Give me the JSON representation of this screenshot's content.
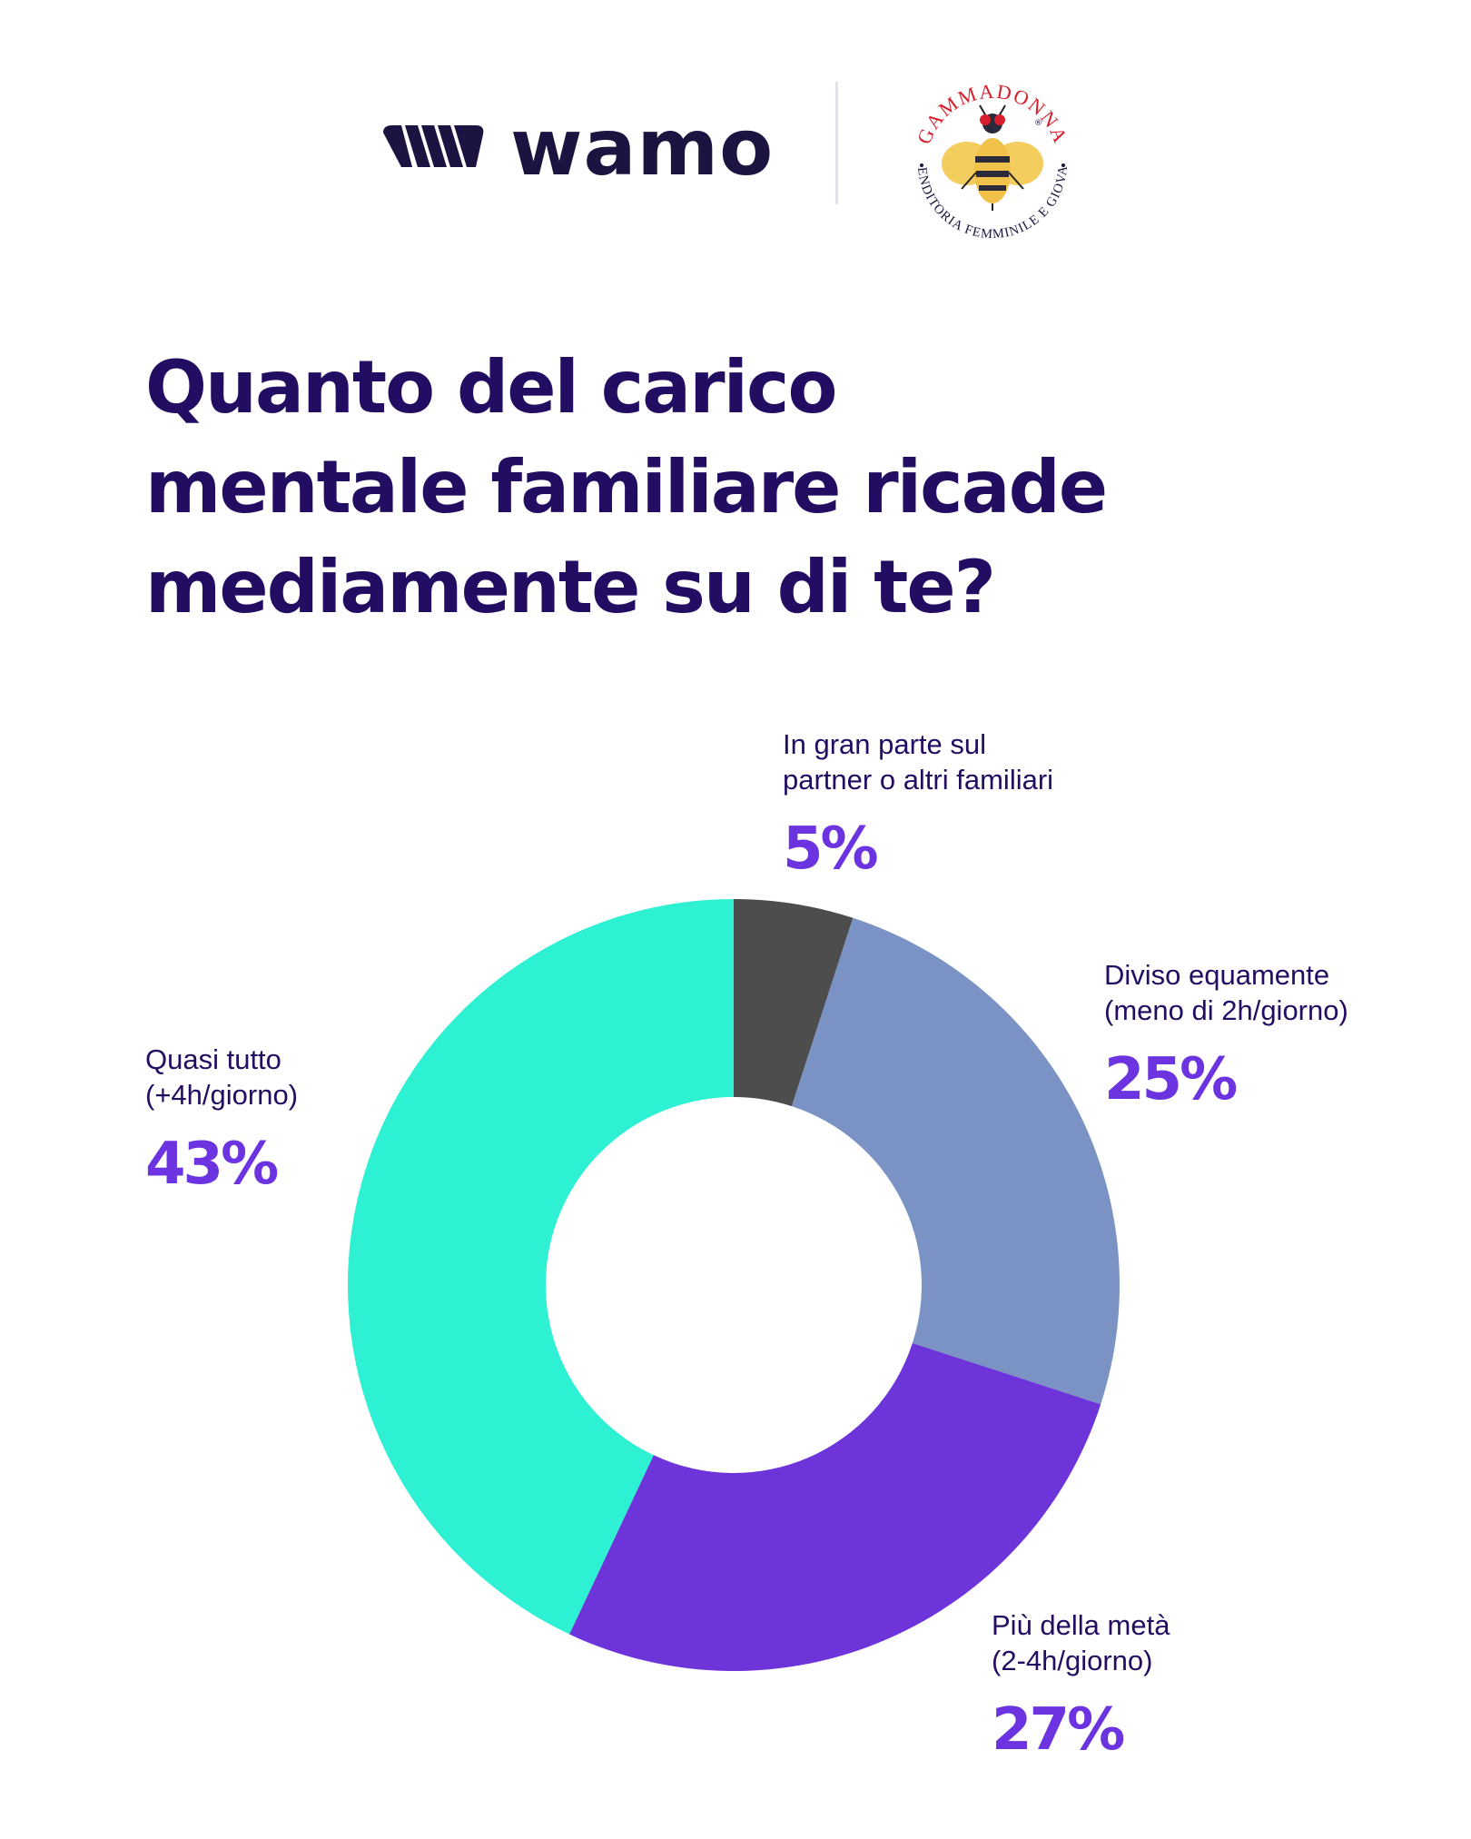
{
  "brand": {
    "name": "wamo",
    "partner": "GammaDonna",
    "partner_tagline": "Imprenditoria Femminile e Giovanile"
  },
  "title_lines": [
    "Quanto del carico",
    "mentale familiare ricade",
    "mediamente su di te?"
  ],
  "chart_data": {
    "type": "pie",
    "donut": true,
    "title": "Quanto del carico mentale familiare ricade mediamente su di te?",
    "slices": [
      {
        "label_lines": [
          "In gran parte sul",
          "partner o altri familiari"
        ],
        "value": 5,
        "display": "5%",
        "color": "#4d4d4d"
      },
      {
        "label_lines": [
          "Diviso equamente",
          "(meno di 2h/giorno)"
        ],
        "value": 25,
        "display": "25%",
        "color": "#7b92c4"
      },
      {
        "label_lines": [
          "Più della metà",
          "(2-4h/giorno)"
        ],
        "value": 27,
        "display": "27%",
        "color": "#6c34d9"
      },
      {
        "label_lines": [
          "Quasi tutto",
          "(+4h/giorno)"
        ],
        "value": 43,
        "display": "43%",
        "color": "#2ef0d3"
      }
    ]
  }
}
